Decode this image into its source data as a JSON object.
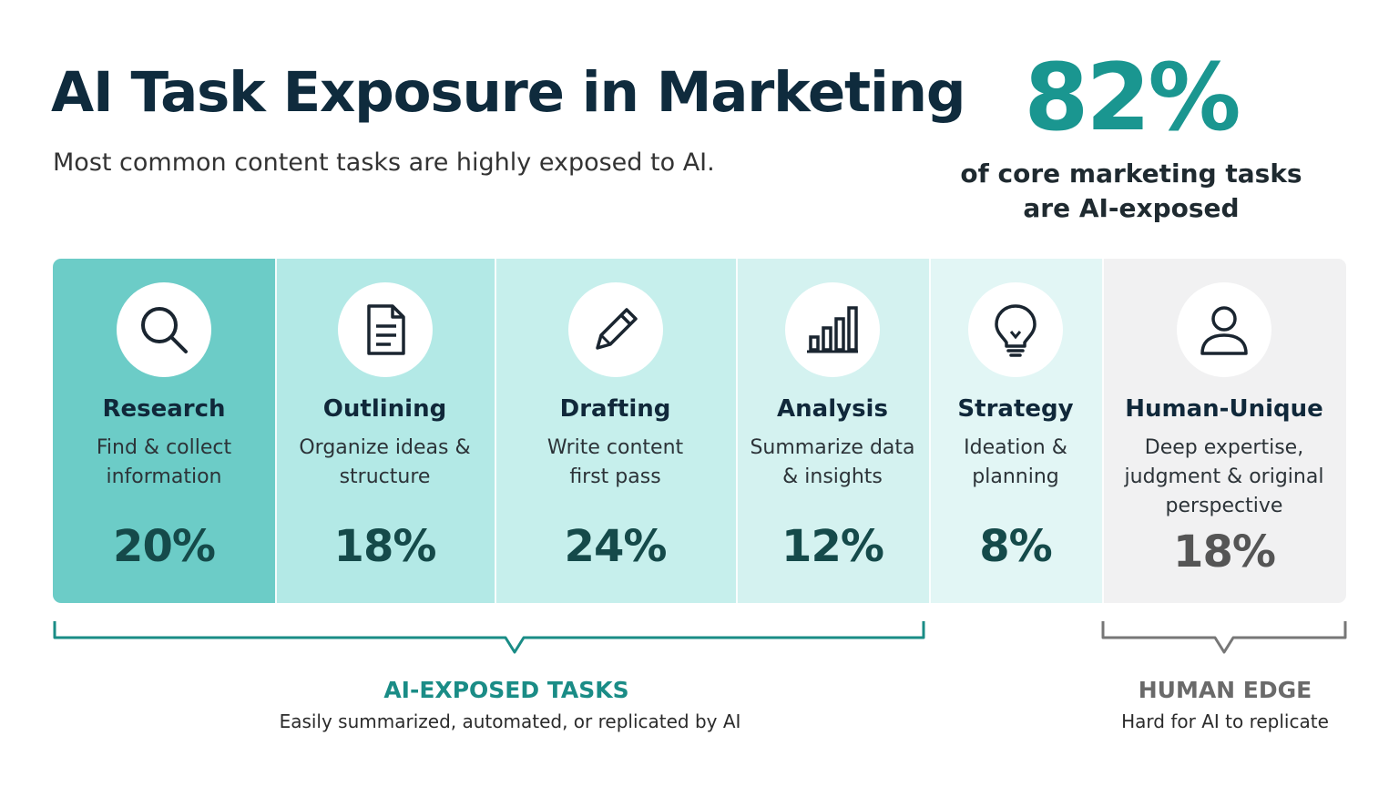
{
  "header": {
    "title": "AI Task Exposure in Marketing",
    "subtitle": "Most common content tasks are highly exposed to AI."
  },
  "stat": {
    "value": "82%",
    "caption": "of core marketing tasks\nare AI-exposed"
  },
  "colors": {
    "accent": "#1a9690",
    "title": "#0f2b3d",
    "ai_bracket": "#1a8c86",
    "human_bracket": "#777777"
  },
  "chart_data": {
    "type": "table",
    "categories": [
      "Research",
      "Outlining",
      "Drafting",
      "Analysis",
      "Strategy",
      "Human-Unique"
    ],
    "descriptions": [
      "Find & collect\ninformation",
      "Organize ideas &\nstructure",
      "Write content\nfirst pass",
      "Summarize data\n& insights",
      "Ideation &\nplanning",
      "Deep expertise,\njudgment & original\nperspective"
    ],
    "values": [
      20,
      18,
      24,
      12,
      8,
      18
    ],
    "value_labels": [
      "20%",
      "18%",
      "24%",
      "12%",
      "8%",
      "18%"
    ],
    "icons": [
      "magnifier-icon",
      "document-icon",
      "pencil-icon",
      "bar-chart-icon",
      "lightbulb-icon",
      "person-icon"
    ],
    "fills": [
      "#6cccc7",
      "#b3e9e6",
      "#c6efec",
      "#d4f2f0",
      "#e2f6f5",
      "#f1f1f2"
    ],
    "groups": [
      {
        "label": "AI-EXPOSED TASKS",
        "note": "Easily summarized, automated, or replicated by AI",
        "categories": [
          "Research",
          "Outlining",
          "Drafting",
          "Analysis",
          "Strategy"
        ]
      },
      {
        "label": "HUMAN EDGE",
        "note": "Hard for AI to replicate",
        "categories": [
          "Human-Unique"
        ]
      }
    ]
  }
}
